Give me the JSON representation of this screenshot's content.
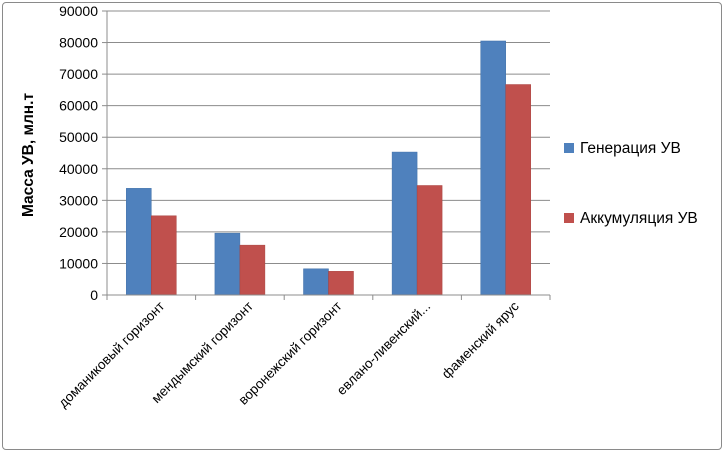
{
  "chart_data": {
    "type": "bar",
    "ylabel": "Масса УВ, млн.т",
    "xlabel": "",
    "ylim": [
      0,
      90000
    ],
    "ytick_step": 10000,
    "yticks": [
      "0",
      "10000",
      "20000",
      "30000",
      "40000",
      "50000",
      "60000",
      "70000",
      "80000",
      "90000"
    ],
    "categories": [
      "доманиковый горизонт",
      "мендымский горизонт",
      "воронежский горизонт",
      "евлано-ливенский...",
      "фаменский ярус"
    ],
    "series": [
      {
        "name": "Генерация УВ",
        "color": "#4f81bd",
        "values": [
          33800,
          19600,
          8300,
          45300,
          80500
        ]
      },
      {
        "name": "Аккумуляция УВ",
        "color": "#c0504d",
        "values": [
          25100,
          15800,
          7500,
          34700,
          66700
        ]
      }
    ],
    "grid": true,
    "legend_position": "right"
  }
}
